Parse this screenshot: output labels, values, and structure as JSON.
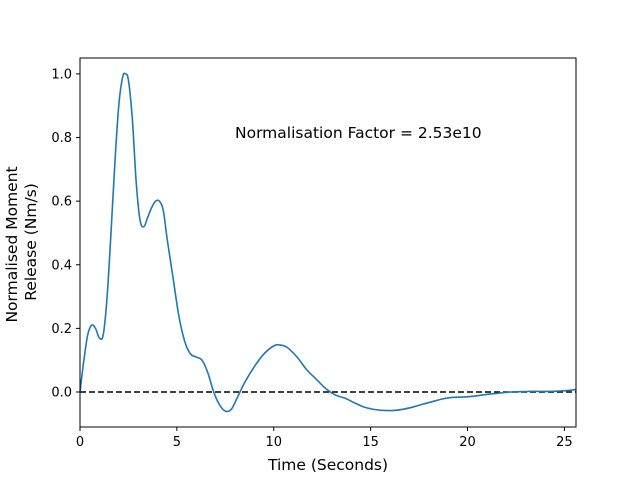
{
  "chart_data": {
    "type": "line",
    "xlabel": "Time (Seconds)",
    "ylabel_lines": [
      "Normalised Moment",
      "Release (Nm/s)"
    ],
    "xlim": [
      0,
      25.6
    ],
    "ylim": [
      -0.11,
      1.05
    ],
    "xticks": [
      0,
      5,
      10,
      15,
      20,
      25
    ],
    "yticks": [
      0.0,
      0.2,
      0.4,
      0.6,
      0.8,
      1.0
    ],
    "ytick_labels": [
      "0.0",
      "0.2",
      "0.4",
      "0.6",
      "0.8",
      "1.0"
    ],
    "grid": false,
    "annotation": "Normalisation Factor = 2.53e10",
    "reference_line": {
      "y": 0,
      "style": "dashed",
      "color": "#000000"
    },
    "series": [
      {
        "color": "#1f77b4",
        "x": [
          0,
          0.2,
          0.4,
          0.6,
          0.8,
          1.0,
          1.2,
          1.4,
          1.6,
          1.8,
          2.0,
          2.2,
          2.35,
          2.5,
          2.7,
          2.9,
          3.1,
          3.3,
          3.5,
          3.7,
          3.9,
          4.1,
          4.3,
          4.5,
          4.8,
          5.1,
          5.4,
          5.7,
          6.0,
          6.3,
          6.6,
          6.9,
          7.2,
          7.5,
          7.8,
          8.1,
          8.5,
          9.0,
          9.5,
          10.0,
          10.3,
          10.7,
          11.2,
          11.7,
          12.2,
          12.7,
          13.2,
          13.7,
          14.2,
          14.7,
          15.2,
          15.7,
          16.2,
          16.7,
          17.2,
          17.7,
          18.2,
          18.7,
          19.2,
          19.7,
          20.2,
          20.7,
          21.2,
          21.7,
          22.2,
          22.7,
          23.2,
          23.7,
          24.2,
          24.7,
          25.2,
          25.6
        ],
        "y": [
          0.0,
          0.1,
          0.18,
          0.21,
          0.2,
          0.17,
          0.18,
          0.3,
          0.5,
          0.72,
          0.9,
          0.99,
          1.0,
          0.98,
          0.86,
          0.66,
          0.54,
          0.52,
          0.55,
          0.58,
          0.6,
          0.6,
          0.57,
          0.48,
          0.36,
          0.24,
          0.16,
          0.12,
          0.11,
          0.1,
          0.06,
          0.0,
          -0.04,
          -0.06,
          -0.055,
          -0.02,
          0.03,
          0.08,
          0.12,
          0.145,
          0.148,
          0.14,
          0.11,
          0.07,
          0.04,
          0.01,
          -0.01,
          -0.02,
          -0.035,
          -0.048,
          -0.055,
          -0.058,
          -0.058,
          -0.054,
          -0.047,
          -0.038,
          -0.03,
          -0.022,
          -0.017,
          -0.016,
          -0.014,
          -0.01,
          -0.006,
          -0.003,
          0.0,
          0.001,
          0.002,
          0.002,
          0.002,
          0.003,
          0.005,
          0.008
        ]
      }
    ]
  }
}
